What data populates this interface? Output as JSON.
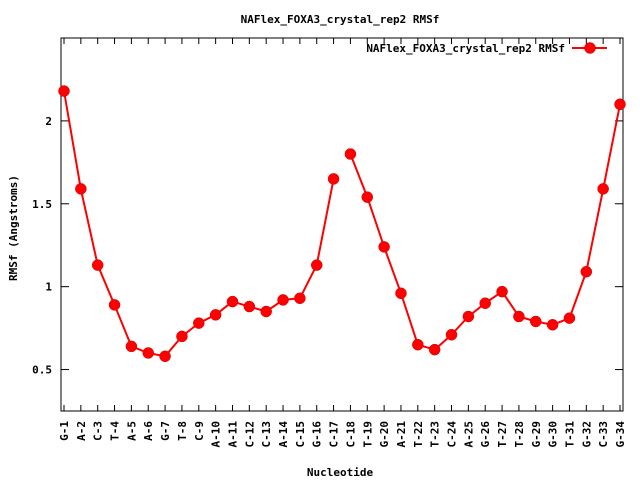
{
  "chart_data": {
    "type": "line",
    "title": "NAFlex_FOXA3_crystal_rep2 RMSf",
    "xlabel": "Nucleotide",
    "ylabel": "RMSf (Angstroms)",
    "ylim": [
      0.25,
      2.5
    ],
    "yticks": [
      0.5,
      1,
      1.5,
      2
    ],
    "ytick_labels": [
      "0.5",
      "1",
      "1.5",
      "2"
    ],
    "legend_position": "top-right",
    "color": "#ff0000",
    "categories": [
      "G-1",
      "A-2",
      "C-3",
      "T-4",
      "A-5",
      "A-6",
      "G-7",
      "T-8",
      "C-9",
      "A-10",
      "A-11",
      "C-12",
      "C-13",
      "A-14",
      "C-15",
      "G-16",
      "C-17",
      "C-18",
      "T-19",
      "G-20",
      "A-21",
      "T-22",
      "T-23",
      "C-24",
      "A-25",
      "G-26",
      "T-27",
      "T-28",
      "G-29",
      "G-30",
      "T-31",
      "G-32",
      "C-33",
      "G-34"
    ],
    "segments": [
      [
        0,
        16
      ],
      [
        17,
        33
      ]
    ],
    "series": [
      {
        "name": "NAFlex_FOXA3_crystal_rep2 RMSf",
        "values": [
          2.18,
          1.59,
          1.13,
          0.89,
          0.64,
          0.6,
          0.58,
          0.7,
          0.78,
          0.83,
          0.91,
          0.88,
          0.85,
          0.92,
          0.93,
          1.13,
          1.65,
          1.8,
          1.54,
          1.24,
          0.96,
          0.65,
          0.62,
          0.71,
          0.82,
          0.9,
          0.97,
          0.82,
          0.79,
          0.77,
          0.81,
          1.09,
          1.59,
          2.1
        ]
      }
    ]
  }
}
